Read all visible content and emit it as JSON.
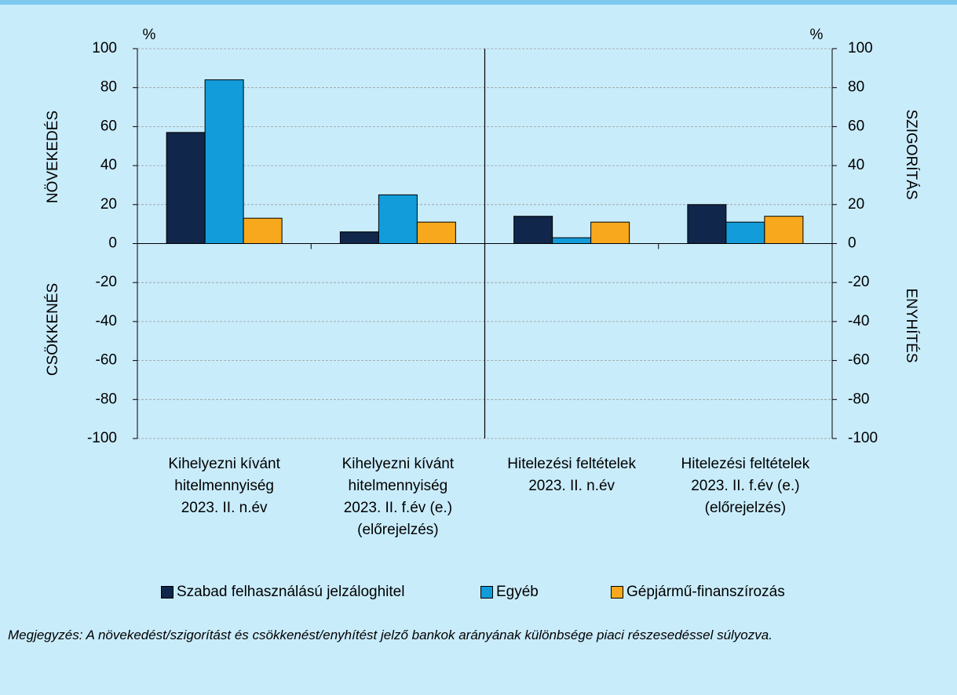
{
  "chart_data": {
    "type": "bar",
    "categories": [
      "Kihelyezni kívánt\nhitelmennyiség\n2023. II. n.év",
      "Kihelyezni kívánt\nhitelmennyiség\n2023. II. f.év (e.)\n(előrejelzés)",
      "Hitelezési feltételek\n2023. II. n.év",
      "Hitelezési feltételek\n2023. II. f.év (e.)\n(előrejelzés)"
    ],
    "series": [
      {
        "name": "Szabad felhasználású jelzáloghitel",
        "color": "#10264a",
        "values": [
          57,
          6,
          14,
          20
        ]
      },
      {
        "name": "Egyéb",
        "color": "#129cda",
        "values": [
          84,
          25,
          3,
          11
        ]
      },
      {
        "name": "Gépjármű-finanszírozás",
        "color": "#f7a81c",
        "values": [
          13,
          11,
          11,
          14
        ]
      }
    ],
    "ylim": [
      -100,
      100
    ],
    "yticks": [
      -100,
      -80,
      -60,
      -40,
      -20,
      0,
      20,
      40,
      60,
      80,
      100
    ],
    "y2lim": [
      -100,
      100
    ],
    "y2ticks": [
      -100,
      -80,
      -60,
      -40,
      -20,
      0,
      20,
      40,
      60,
      80,
      100
    ],
    "y_unit": "%",
    "y2_unit": "%",
    "y_label_top": "NÖVEKEDÉS",
    "y_label_bottom": "CSÖKKENÉS",
    "y2_label_top": "SZIGORÍTÁS",
    "y2_label_bottom": "ENYHÍTÉS",
    "grid": true,
    "note": "Megjegyzés: A növekedést/szigorítást és csökkenést/enyhítést jelző bankok arányának különbsége piaci részesedéssel súlyozva."
  }
}
